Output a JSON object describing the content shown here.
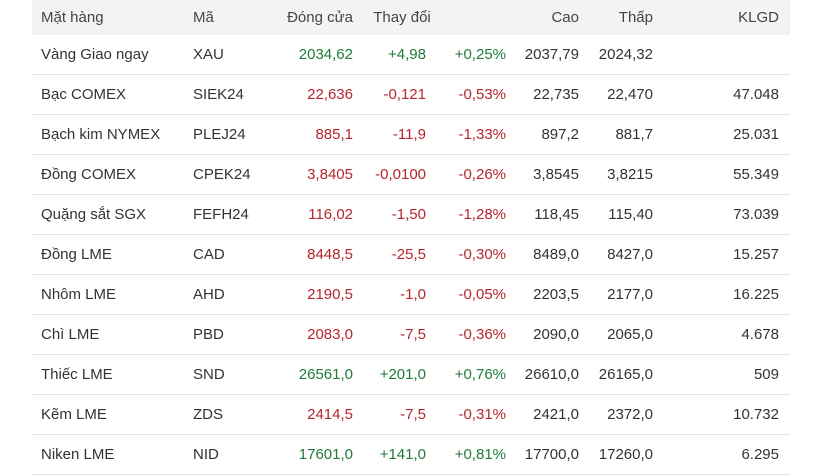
{
  "header": {
    "item": "Mặt hàng",
    "code": "Mã",
    "close": "Đóng cửa",
    "change": "Thay đổi",
    "high": "Cao",
    "low": "Thấp",
    "volume": "KLGD"
  },
  "colors": {
    "up": "#1f7a3a",
    "down": "#b3262d",
    "header_bg": "#f3f3f3"
  },
  "rows": [
    {
      "name": "Vàng Giao ngay",
      "code": "XAU",
      "close": "2034,62",
      "change": "+4,98",
      "pct": "+0,25%",
      "high": "2037,79",
      "low": "2024,32",
      "volume": "",
      "trend": "up"
    },
    {
      "name": "Bạc COMEX",
      "code": "SIEK24",
      "close": "22,636",
      "change": "-0,121",
      "pct": "-0,53%",
      "high": "22,735",
      "low": "22,470",
      "volume": "47.048",
      "trend": "down"
    },
    {
      "name": "Bạch kim NYMEX",
      "code": "PLEJ24",
      "close": "885,1",
      "change": "-11,9",
      "pct": "-1,33%",
      "high": "897,2",
      "low": "881,7",
      "volume": "25.031",
      "trend": "down"
    },
    {
      "name": "Đồng COMEX",
      "code": "CPEK24",
      "close": "3,8405",
      "change": "-0,0100",
      "pct": "-0,26%",
      "high": "3,8545",
      "low": "3,8215",
      "volume": "55.349",
      "trend": "down"
    },
    {
      "name": "Quặng sắt SGX",
      "code": "FEFH24",
      "close": "116,02",
      "change": "-1,50",
      "pct": "-1,28%",
      "high": "118,45",
      "low": "115,40",
      "volume": "73.039",
      "trend": "down"
    },
    {
      "name": "Đồng LME",
      "code": "CAD",
      "close": "8448,5",
      "change": "-25,5",
      "pct": "-0,30%",
      "high": "8489,0",
      "low": "8427,0",
      "volume": "15.257",
      "trend": "down"
    },
    {
      "name": "Nhôm LME",
      "code": "AHD",
      "close": "2190,5",
      "change": "-1,0",
      "pct": "-0,05%",
      "high": "2203,5",
      "low": "2177,0",
      "volume": "16.225",
      "trend": "down"
    },
    {
      "name": "Chì LME",
      "code": "PBD",
      "close": "2083,0",
      "change": "-7,5",
      "pct": "-0,36%",
      "high": "2090,0",
      "low": "2065,0",
      "volume": "4.678",
      "trend": "down"
    },
    {
      "name": "Thiếc LME",
      "code": "SND",
      "close": "26561,0",
      "change": "+201,0",
      "pct": "+0,76%",
      "high": "26610,0",
      "low": "26165,0",
      "volume": "509",
      "trend": "up"
    },
    {
      "name": "Kẽm LME",
      "code": "ZDS",
      "close": "2414,5",
      "change": "-7,5",
      "pct": "-0,31%",
      "high": "2421,0",
      "low": "2372,0",
      "volume": "10.732",
      "trend": "down"
    },
    {
      "name": "Niken LME",
      "code": "NID",
      "close": "17601,0",
      "change": "+141,0",
      "pct": "+0,81%",
      "high": "17700,0",
      "low": "17260,0",
      "volume": "6.295",
      "trend": "up"
    }
  ]
}
